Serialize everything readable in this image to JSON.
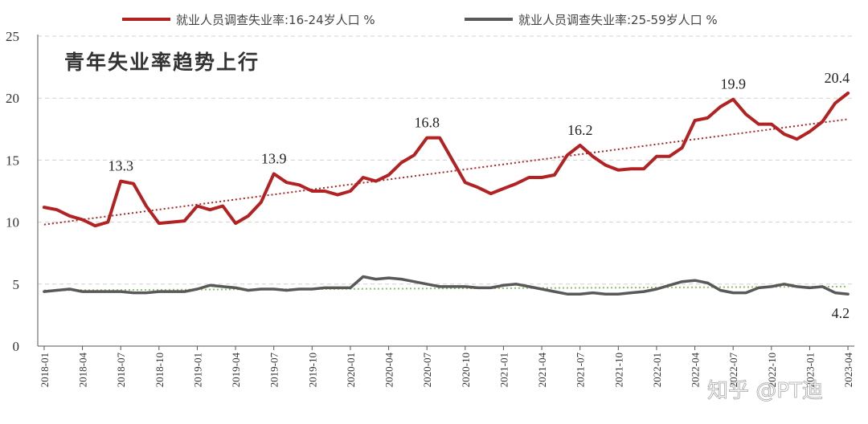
{
  "chart_data": {
    "type": "line",
    "title": "青年失业率趋势上行",
    "ylim": [
      0,
      25
    ],
    "yticks": [
      0,
      5,
      10,
      15,
      20,
      25
    ],
    "grid": "horizontal dashed",
    "legend_position": "top",
    "x": [
      "2018-01",
      "2018-02",
      "2018-03",
      "2018-04",
      "2018-05",
      "2018-06",
      "2018-07",
      "2018-08",
      "2018-09",
      "2018-10",
      "2018-11",
      "2018-12",
      "2019-01",
      "2019-02",
      "2019-03",
      "2019-04",
      "2019-05",
      "2019-06",
      "2019-07",
      "2019-08",
      "2019-09",
      "2019-10",
      "2019-11",
      "2019-12",
      "2020-01",
      "2020-02",
      "2020-03",
      "2020-04",
      "2020-05",
      "2020-06",
      "2020-07",
      "2020-08",
      "2020-09",
      "2020-10",
      "2020-11",
      "2020-12",
      "2021-01",
      "2021-02",
      "2021-03",
      "2021-04",
      "2021-05",
      "2021-06",
      "2021-07",
      "2021-08",
      "2021-09",
      "2021-10",
      "2021-11",
      "2021-12",
      "2022-01",
      "2022-02",
      "2022-03",
      "2022-04",
      "2022-05",
      "2022-06",
      "2022-07",
      "2022-08",
      "2022-09",
      "2022-10",
      "2022-11",
      "2022-12",
      "2023-01",
      "2023-02",
      "2023-03",
      "2023-04"
    ],
    "xtick_labels": [
      "2018-01",
      "2018-04",
      "2018-07",
      "2018-10",
      "2019-01",
      "2019-04",
      "2019-07",
      "2019-10",
      "2020-01",
      "2020-04",
      "2020-07",
      "2020-10",
      "2021-01",
      "2021-04",
      "2021-07",
      "2021-10",
      "2022-01",
      "2022-04",
      "2022-07",
      "2022-10",
      "2023-01",
      "2023-04"
    ],
    "series": [
      {
        "name": "就业人员调查失业率:16-24岁人口 %",
        "color": "#b22222",
        "values": [
          11.2,
          11.0,
          10.5,
          10.2,
          9.7,
          10.0,
          13.3,
          13.1,
          11.3,
          9.9,
          10.0,
          10.1,
          11.3,
          11.0,
          11.3,
          9.9,
          10.5,
          11.6,
          13.9,
          13.2,
          13.0,
          12.5,
          12.5,
          12.2,
          12.5,
          13.6,
          13.3,
          13.8,
          14.8,
          15.4,
          16.8,
          16.8,
          15.0,
          13.2,
          12.8,
          12.3,
          12.7,
          13.1,
          13.6,
          13.6,
          13.8,
          15.4,
          16.2,
          15.3,
          14.6,
          14.2,
          14.3,
          14.3,
          15.3,
          15.3,
          16.0,
          18.2,
          18.4,
          19.3,
          19.9,
          18.7,
          17.9,
          17.9,
          17.1,
          16.7,
          17.3,
          18.1,
          19.6,
          20.4
        ]
      },
      {
        "name": "就业人员调查失业率:25-59岁人口 %",
        "color": "#595959",
        "values": [
          4.4,
          4.5,
          4.6,
          4.4,
          4.4,
          4.4,
          4.4,
          4.3,
          4.3,
          4.4,
          4.4,
          4.4,
          4.6,
          4.9,
          4.8,
          4.7,
          4.5,
          4.6,
          4.6,
          4.5,
          4.6,
          4.6,
          4.7,
          4.7,
          4.7,
          5.6,
          5.4,
          5.5,
          5.4,
          5.2,
          5.0,
          4.8,
          4.8,
          4.8,
          4.7,
          4.7,
          4.9,
          5.0,
          4.8,
          4.6,
          4.4,
          4.2,
          4.2,
          4.3,
          4.2,
          4.2,
          4.3,
          4.4,
          4.6,
          4.9,
          5.2,
          5.3,
          5.1,
          4.5,
          4.3,
          4.3,
          4.7,
          4.8,
          5.0,
          4.8,
          4.7,
          4.8,
          4.3,
          4.2
        ]
      }
    ],
    "trendlines": [
      {
        "series": "16-24",
        "style": "dotted",
        "color": "#b22222",
        "start": 9.8,
        "end": 18.3
      },
      {
        "series": "25-59",
        "style": "dotted",
        "color": "#8fbf6a",
        "start": 4.5,
        "end": 4.8
      }
    ],
    "annotations": [
      {
        "x": "2018-07",
        "text": "13.3"
      },
      {
        "x": "2019-07",
        "text": "13.9"
      },
      {
        "x": "2020-07",
        "text": "16.8"
      },
      {
        "x": "2021-07",
        "text": "16.2"
      },
      {
        "x": "2022-07",
        "text": "19.9"
      },
      {
        "x": "2023-04",
        "text": "20.4"
      },
      {
        "x": "2023-04",
        "text": "4.2"
      }
    ]
  },
  "watermark": "知乎 @PT迪"
}
